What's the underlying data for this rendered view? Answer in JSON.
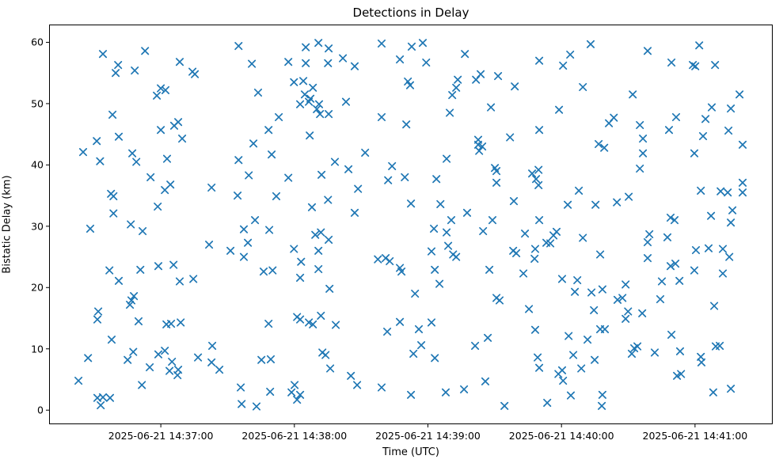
{
  "chart_data": {
    "type": "scatter",
    "title": "Detections in Delay",
    "xlabel": "Time (UTC)",
    "ylabel": "Bistatic Delay (km)",
    "marker": "x",
    "marker_color": "#1f77b4",
    "grid": false,
    "legend": null,
    "x_axis": {
      "epoch": "2025-06-21 14:36:00",
      "range_seconds": [
        9.8,
        334.9
      ],
      "tick_seconds": [
        60,
        120,
        180,
        240,
        300
      ],
      "tick_labels": [
        "2025-06-21 14:37:00",
        "2025-06-21 14:38:00",
        "2025-06-21 14:39:00",
        "2025-06-21 14:40:00",
        "2025-06-21 14:41:00"
      ]
    },
    "y_axis": {
      "range": [
        -2.3,
        62.9
      ],
      "ticks": [
        0,
        10,
        20,
        30,
        40,
        50,
        60
      ],
      "tick_labels": [
        "0",
        "10",
        "20",
        "30",
        "40",
        "50",
        "60"
      ]
    },
    "points_format": "[seconds_after_epoch, bistatic_delay_km]",
    "points": [
      [
        34,
        58.1
      ],
      [
        52.9,
        58.6
      ],
      [
        40.8,
        56.3
      ],
      [
        39.7,
        55
      ],
      [
        48.3,
        55.4
      ],
      [
        68.5,
        56.8
      ],
      [
        74.2,
        55.2
      ],
      [
        75.3,
        54.8
      ],
      [
        94.9,
        59.4
      ],
      [
        100.9,
        56.5
      ],
      [
        117.3,
        56.8
      ],
      [
        60,
        52.5
      ],
      [
        62.1,
        52.2
      ],
      [
        58.2,
        51.3
      ],
      [
        103.7,
        51.8
      ],
      [
        119.8,
        53.5
      ],
      [
        38.3,
        48.2
      ],
      [
        66,
        46.4
      ],
      [
        67.8,
        47
      ],
      [
        60,
        45.7
      ],
      [
        69.6,
        44.3
      ],
      [
        113,
        47.8
      ],
      [
        108.4,
        45.7
      ],
      [
        41.1,
        44.6
      ],
      [
        31.2,
        43.9
      ],
      [
        25.1,
        42.1
      ],
      [
        32.7,
        40.6
      ],
      [
        47.2,
        41.9
      ],
      [
        49,
        40.5
      ],
      [
        62.8,
        41
      ],
      [
        101.6,
        43.5
      ],
      [
        109.8,
        41.7
      ],
      [
        94.9,
        40.8
      ],
      [
        99.5,
        38.3
      ],
      [
        117.3,
        37.9
      ],
      [
        55.4,
        38
      ],
      [
        61.8,
        35.9
      ],
      [
        64.3,
        36.8
      ],
      [
        82.8,
        36.3
      ],
      [
        94.5,
        35
      ],
      [
        111.9,
        34.9
      ],
      [
        37.6,
        35.3
      ],
      [
        38.7,
        34.9
      ],
      [
        58.6,
        33.2
      ],
      [
        38.7,
        32.1
      ],
      [
        46.5,
        30.3
      ],
      [
        102.3,
        31
      ],
      [
        125.1,
        59.2
      ],
      [
        130.8,
        59.9
      ],
      [
        135.4,
        59
      ],
      [
        125.1,
        56.6
      ],
      [
        135.1,
        56.6
      ],
      [
        141.8,
        57.4
      ],
      [
        147.1,
        56.1
      ],
      [
        159.2,
        59.8
      ],
      [
        172.7,
        59.3
      ],
      [
        177.7,
        59.9
      ],
      [
        167.4,
        57.2
      ],
      [
        179.2,
        56.7
      ],
      [
        196.6,
        58.1
      ],
      [
        124,
        53.7
      ],
      [
        128.3,
        52.6
      ],
      [
        124.7,
        51.5
      ],
      [
        127.2,
        50.8
      ],
      [
        122.6,
        49.9
      ],
      [
        126.5,
        50.3
      ],
      [
        131.1,
        49.9
      ],
      [
        130.1,
        49.1
      ],
      [
        131.5,
        48.3
      ],
      [
        135.4,
        48.3
      ],
      [
        143.2,
        50.3
      ],
      [
        171,
        53.6
      ],
      [
        172,
        53
      ],
      [
        193.4,
        53.9
      ],
      [
        192.7,
        52.6
      ],
      [
        190.9,
        51.4
      ],
      [
        201.6,
        53.9
      ],
      [
        203.7,
        54.8
      ],
      [
        211.5,
        54.5
      ],
      [
        219,
        52.8
      ],
      [
        189.8,
        48.5
      ],
      [
        208.3,
        49.4
      ],
      [
        159.2,
        47.8
      ],
      [
        170.3,
        46.6
      ],
      [
        126.9,
        44.8
      ],
      [
        151.8,
        42
      ],
      [
        202.6,
        44.1
      ],
      [
        216.9,
        44.5
      ],
      [
        202.6,
        43.3
      ],
      [
        204.4,
        43
      ],
      [
        203,
        42.3
      ],
      [
        188.4,
        41
      ],
      [
        138.2,
        40.5
      ],
      [
        144.3,
        39.3
      ],
      [
        132.2,
        38.4
      ],
      [
        163.9,
        39.8
      ],
      [
        162.1,
        37.5
      ],
      [
        169.6,
        38
      ],
      [
        183.8,
        37.7
      ],
      [
        210.1,
        39.5
      ],
      [
        210.8,
        39
      ],
      [
        210.8,
        37.1
      ],
      [
        226.8,
        38.6
      ],
      [
        229.7,
        39.2
      ],
      [
        228.6,
        37.7
      ],
      [
        229.7,
        36.7
      ],
      [
        148.6,
        36.1
      ],
      [
        135.1,
        34.3
      ],
      [
        127.9,
        33.1
      ],
      [
        147.1,
        32.2
      ],
      [
        172.4,
        33.7
      ],
      [
        185.6,
        33.6
      ],
      [
        218.6,
        34.1
      ],
      [
        190.5,
        31
      ],
      [
        197.6,
        32.2
      ],
      [
        209,
        31
      ],
      [
        230,
        31
      ],
      [
        253.1,
        59.7
      ],
      [
        243.9,
        58
      ],
      [
        230,
        57
      ],
      [
        240.7,
        56.2
      ],
      [
        278.7,
        58.6
      ],
      [
        301.9,
        59.5
      ],
      [
        289.4,
        56.7
      ],
      [
        299,
        56.3
      ],
      [
        300.1,
        56.1
      ],
      [
        309,
        56.3
      ],
      [
        249.6,
        52.7
      ],
      [
        272,
        51.5
      ],
      [
        320,
        51.5
      ],
      [
        238.9,
        49
      ],
      [
        307.5,
        49.4
      ],
      [
        316.1,
        49.2
      ],
      [
        291.5,
        47.8
      ],
      [
        304.7,
        47.5
      ],
      [
        261.3,
        46.8
      ],
      [
        263.5,
        47.7
      ],
      [
        275.2,
        46.5
      ],
      [
        230,
        45.7
      ],
      [
        288.3,
        45.7
      ],
      [
        315,
        45.6
      ],
      [
        303.6,
        44.7
      ],
      [
        256.7,
        43.4
      ],
      [
        259.2,
        42.8
      ],
      [
        276.6,
        44.3
      ],
      [
        321.4,
        43.3
      ],
      [
        276.6,
        41.9
      ],
      [
        299.7,
        41.9
      ],
      [
        275.2,
        39.4
      ],
      [
        247.8,
        35.8
      ],
      [
        302.6,
        35.8
      ],
      [
        311.5,
        35.7
      ],
      [
        314.7,
        35.5
      ],
      [
        321.4,
        37.1
      ],
      [
        321.4,
        35.5
      ],
      [
        242.8,
        33.5
      ],
      [
        255.3,
        33.5
      ],
      [
        264.9,
        33.9
      ],
      [
        270.2,
        34.8
      ],
      [
        289,
        31.4
      ],
      [
        290.8,
        31
      ],
      [
        307.2,
        31.7
      ],
      [
        316.8,
        32.6
      ],
      [
        316.1,
        30.6
      ],
      [
        28.3,
        29.6
      ],
      [
        51.8,
        29.2
      ],
      [
        97.3,
        29.5
      ],
      [
        108.7,
        29.4
      ],
      [
        81.7,
        27
      ],
      [
        91.3,
        26
      ],
      [
        99.1,
        27.3
      ],
      [
        97.3,
        25
      ],
      [
        119.8,
        26.3
      ],
      [
        36.9,
        22.8
      ],
      [
        41.1,
        21.1
      ],
      [
        50.8,
        22.9
      ],
      [
        58.9,
        23.5
      ],
      [
        65.7,
        23.7
      ],
      [
        68.5,
        21
      ],
      [
        74.6,
        21.4
      ],
      [
        106.2,
        22.6
      ],
      [
        110.2,
        22.8
      ],
      [
        47.9,
        18.6
      ],
      [
        46.8,
        17.9
      ],
      [
        46.1,
        17.2
      ],
      [
        31.9,
        16.1
      ],
      [
        31.5,
        14.8
      ],
      [
        50,
        14.5
      ],
      [
        62.5,
        14
      ],
      [
        64.6,
        14.1
      ],
      [
        68.9,
        14.3
      ],
      [
        108.4,
        14.1
      ],
      [
        37.9,
        11.5
      ],
      [
        27.3,
        8.5
      ],
      [
        45.1,
        8.2
      ],
      [
        47.6,
        9.5
      ],
      [
        55,
        7
      ],
      [
        58.9,
        9.1
      ],
      [
        61.8,
        9.7
      ],
      [
        65,
        7.9
      ],
      [
        63.9,
        6.4
      ],
      [
        67.8,
        6.6
      ],
      [
        67.5,
        5.7
      ],
      [
        76.7,
        8.6
      ],
      [
        82.8,
        7.8
      ],
      [
        86.3,
        6.6
      ],
      [
        83.1,
        10.5
      ],
      [
        105.2,
        8.2
      ],
      [
        109.4,
        8.3
      ],
      [
        23,
        4.8
      ],
      [
        51.5,
        4.1
      ],
      [
        95.9,
        3.7
      ],
      [
        109.1,
        3
      ],
      [
        31.5,
        2
      ],
      [
        34,
        2.1
      ],
      [
        37.2,
        2
      ],
      [
        33,
        0.8
      ],
      [
        96.3,
        1
      ],
      [
        103,
        0.6
      ],
      [
        129.4,
        28.6
      ],
      [
        131.9,
        29
      ],
      [
        135.4,
        27.8
      ],
      [
        130.8,
        26
      ],
      [
        123,
        24.2
      ],
      [
        130.8,
        23
      ],
      [
        122.6,
        21.6
      ],
      [
        135.8,
        19.8
      ],
      [
        182.7,
        29.6
      ],
      [
        188.4,
        29
      ],
      [
        204.8,
        29.2
      ],
      [
        223.6,
        28.8
      ],
      [
        181.6,
        25.9
      ],
      [
        189.1,
        26.8
      ],
      [
        191.3,
        25.4
      ],
      [
        192.7,
        25
      ],
      [
        183.1,
        22.9
      ],
      [
        185.2,
        20.6
      ],
      [
        174.2,
        19
      ],
      [
        157.5,
        24.6
      ],
      [
        161,
        24.8
      ],
      [
        162.8,
        24.3
      ],
      [
        167.4,
        23.2
      ],
      [
        168.1,
        22.6
      ],
      [
        207.6,
        22.9
      ],
      [
        222.9,
        22.3
      ],
      [
        218.3,
        26
      ],
      [
        219.7,
        25.6
      ],
      [
        228.2,
        26.3
      ],
      [
        227.9,
        24.7
      ],
      [
        210.8,
        18.3
      ],
      [
        212.2,
        17.9
      ],
      [
        225.4,
        16.5
      ],
      [
        131.9,
        15.4
      ],
      [
        121.2,
        15.2
      ],
      [
        122.6,
        14.8
      ],
      [
        126.5,
        14.3
      ],
      [
        128.3,
        14
      ],
      [
        138.6,
        13.9
      ],
      [
        167.4,
        14.4
      ],
      [
        161.7,
        12.8
      ],
      [
        175.9,
        13.2
      ],
      [
        181.6,
        14.3
      ],
      [
        177,
        10.6
      ],
      [
        173.5,
        9.2
      ],
      [
        183.1,
        8.5
      ],
      [
        201.2,
        10.5
      ],
      [
        206.9,
        11.8
      ],
      [
        228.2,
        13.1
      ],
      [
        229.3,
        8.6
      ],
      [
        132.6,
        9.4
      ],
      [
        134,
        9
      ],
      [
        136.1,
        6.8
      ],
      [
        145.4,
        5.6
      ],
      [
        148.2,
        4.1
      ],
      [
        159.2,
        3.7
      ],
      [
        172.4,
        2.5
      ],
      [
        188,
        2.9
      ],
      [
        196.2,
        3.4
      ],
      [
        205.8,
        4.7
      ],
      [
        214.4,
        0.7
      ],
      [
        118.7,
        2.9
      ],
      [
        120.1,
        4.1
      ],
      [
        122.6,
        2.5
      ],
      [
        121.2,
        1.7
      ],
      [
        236.4,
        28.5
      ],
      [
        237.8,
        29.1
      ],
      [
        233.2,
        27.3
      ],
      [
        235,
        27.2
      ],
      [
        249.6,
        28.1
      ],
      [
        257.4,
        25.4
      ],
      [
        279.5,
        28.7
      ],
      [
        278.7,
        27.4
      ],
      [
        287.6,
        28.2
      ],
      [
        278.7,
        24.8
      ],
      [
        289,
        23.5
      ],
      [
        291.2,
        23.9
      ],
      [
        300.4,
        26.1
      ],
      [
        306.1,
        26.4
      ],
      [
        312.5,
        26.3
      ],
      [
        315.4,
        25
      ],
      [
        299.7,
        22.8
      ],
      [
        312.5,
        22.3
      ],
      [
        285.1,
        21
      ],
      [
        293,
        21.1
      ],
      [
        240.3,
        21.4
      ],
      [
        247.1,
        21.2
      ],
      [
        246,
        19.3
      ],
      [
        253.5,
        19.2
      ],
      [
        258.4,
        19.7
      ],
      [
        268.8,
        20.5
      ],
      [
        265.2,
        18
      ],
      [
        267.4,
        18.3
      ],
      [
        284.4,
        18.1
      ],
      [
        308.6,
        17
      ],
      [
        254.6,
        16.3
      ],
      [
        269.9,
        16.1
      ],
      [
        276.3,
        15.8
      ],
      [
        268.8,
        14.9
      ],
      [
        257.4,
        13.2
      ],
      [
        259.5,
        13.2
      ],
      [
        243.2,
        12.1
      ],
      [
        251.7,
        11.5
      ],
      [
        289.4,
        12.3
      ],
      [
        272.7,
        10.1
      ],
      [
        274.1,
        10.4
      ],
      [
        271.6,
        9.2
      ],
      [
        281.9,
        9.4
      ],
      [
        293.3,
        9.6
      ],
      [
        309.3,
        10.4
      ],
      [
        311.1,
        10.5
      ],
      [
        302.6,
        8.7
      ],
      [
        302.9,
        7.8
      ],
      [
        245.3,
        9
      ],
      [
        254.9,
        8.2
      ],
      [
        248.9,
        6.8
      ],
      [
        230,
        6.9
      ],
      [
        238.6,
        5.9
      ],
      [
        240.3,
        6.5
      ],
      [
        240.7,
        4.8
      ],
      [
        244.2,
        2.4
      ],
      [
        258.4,
        2.5
      ],
      [
        258.1,
        0.7
      ],
      [
        233.6,
        1.2
      ],
      [
        291.9,
        5.6
      ],
      [
        293.7,
        5.9
      ],
      [
        308.2,
        2.9
      ],
      [
        316.1,
        3.5
      ]
    ]
  }
}
